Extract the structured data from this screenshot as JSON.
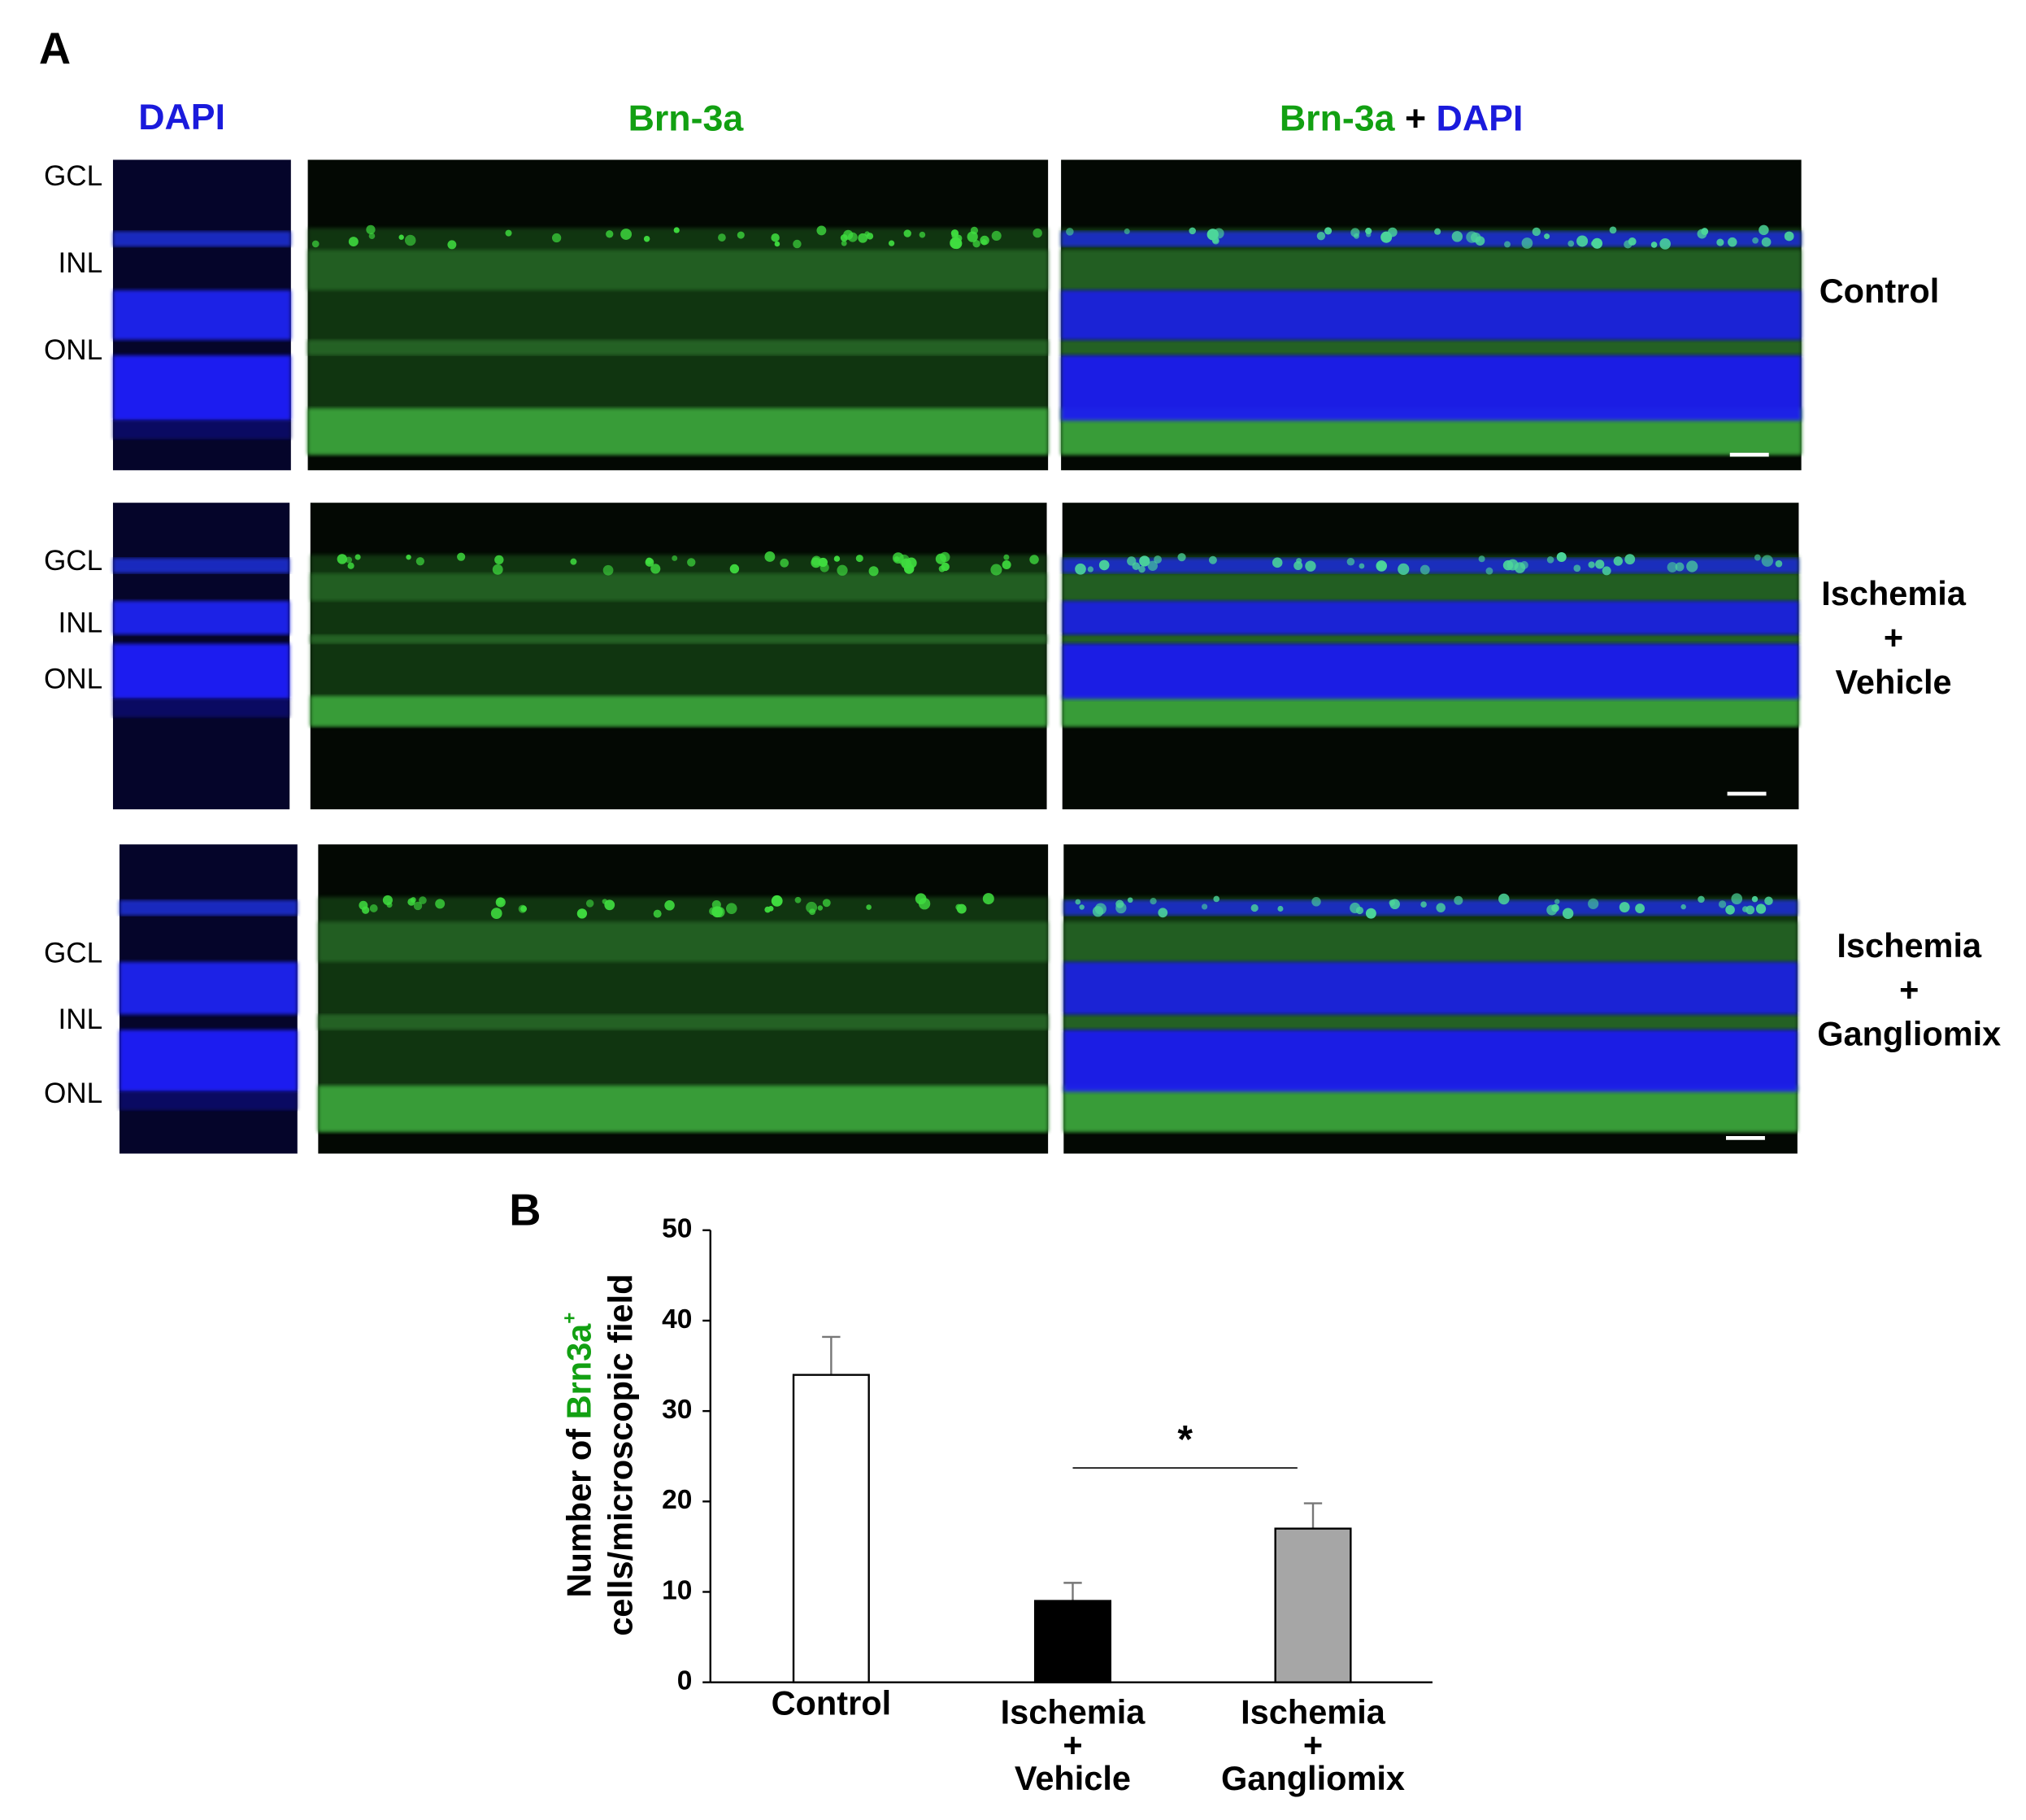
{
  "panel_a": {
    "letter": "A",
    "column_headers": {
      "dapi": "DAPI",
      "brn": "Brn-3a",
      "merge": [
        "Brn-3a",
        "+",
        "DAPI"
      ]
    },
    "layers": [
      "GCL",
      "INL",
      "ONL"
    ],
    "rows": [
      [
        "Control"
      ],
      [
        "Ischemia",
        "+",
        "Vehicle"
      ],
      [
        "Ischemia",
        "+",
        "Gangliomix"
      ]
    ]
  },
  "chart_data": {
    "type": "bar",
    "letter": "B",
    "ylabel": {
      "line1": [
        "Number of",
        "Brn3a",
        "+"
      ],
      "line2": "cells/microscopic field"
    },
    "categories": [
      [
        "Control"
      ],
      [
        "Ischemia",
        "+",
        "Vehicle"
      ],
      [
        "Ischemia",
        "+",
        "Gangliomix"
      ]
    ],
    "values": [
      34,
      9,
      17
    ],
    "errors": [
      4.2,
      2,
      2.8
    ],
    "colors": [
      "#ffffff",
      "#000000",
      "#a6a6a6"
    ],
    "ylim": [
      0,
      50
    ],
    "yticks": [
      0,
      10,
      20,
      30,
      40,
      50
    ],
    "significance": "*"
  }
}
